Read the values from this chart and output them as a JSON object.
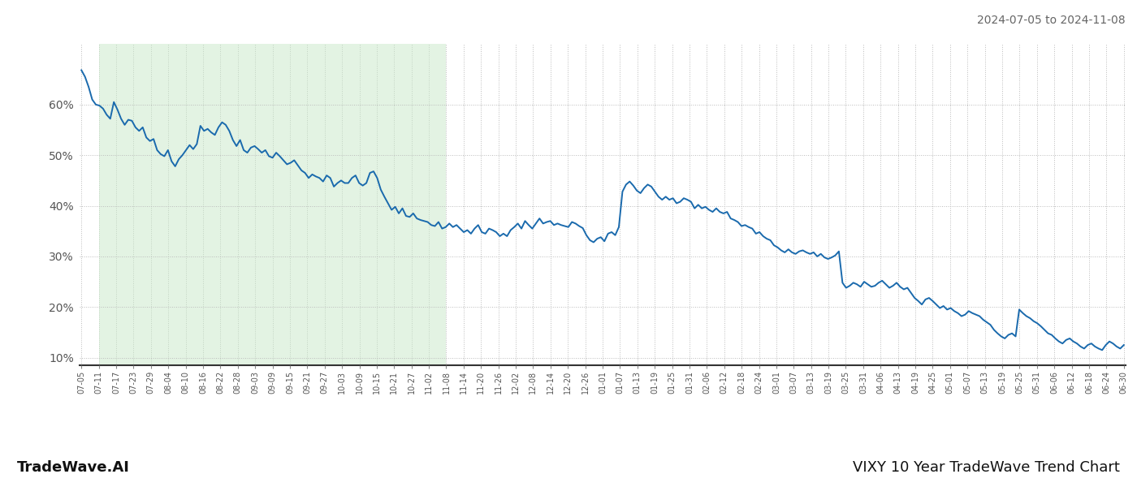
{
  "title_right": "2024-07-05 to 2024-11-08",
  "footer_left": "TradeWave.AI",
  "footer_right": "VIXY 10 Year TradeWave Trend Chart",
  "line_color": "#1a6aad",
  "line_width": 1.4,
  "shade_color": "#c8e8c8",
  "shade_alpha": 0.5,
  "bg_color": "#ffffff",
  "grid_color": "#bbbbbb",
  "ylim": [
    0.085,
    0.72
  ],
  "yticks": [
    0.1,
    0.2,
    0.3,
    0.4,
    0.5,
    0.6
  ],
  "ytick_labels": [
    "10%",
    "20%",
    "30%",
    "40%",
    "50%",
    "60%"
  ],
  "x_labels": [
    "07-05",
    "07-11",
    "07-17",
    "07-23",
    "07-29",
    "08-04",
    "08-10",
    "08-16",
    "08-22",
    "08-28",
    "09-03",
    "09-09",
    "09-15",
    "09-21",
    "09-27",
    "10-03",
    "10-09",
    "10-15",
    "10-21",
    "10-27",
    "11-02",
    "11-08",
    "11-14",
    "11-20",
    "11-26",
    "12-02",
    "12-08",
    "12-14",
    "12-20",
    "12-26",
    "01-01",
    "01-07",
    "01-13",
    "01-19",
    "01-25",
    "01-31",
    "02-06",
    "02-12",
    "02-18",
    "02-24",
    "03-01",
    "03-07",
    "03-13",
    "03-19",
    "03-25",
    "03-31",
    "04-06",
    "04-13",
    "04-19",
    "04-25",
    "05-01",
    "05-07",
    "05-13",
    "05-19",
    "05-25",
    "05-31",
    "06-06",
    "06-12",
    "06-18",
    "06-24",
    "06-30"
  ],
  "shade_start_label": "07-11",
  "shade_end_label": "11-08",
  "values": [
    0.668,
    0.655,
    0.635,
    0.61,
    0.6,
    0.598,
    0.592,
    0.58,
    0.572,
    0.605,
    0.59,
    0.572,
    0.56,
    0.57,
    0.568,
    0.555,
    0.548,
    0.555,
    0.535,
    0.528,
    0.532,
    0.51,
    0.502,
    0.498,
    0.51,
    0.488,
    0.478,
    0.492,
    0.5,
    0.51,
    0.52,
    0.512,
    0.522,
    0.558,
    0.548,
    0.552,
    0.545,
    0.54,
    0.555,
    0.565,
    0.56,
    0.548,
    0.53,
    0.518,
    0.53,
    0.51,
    0.505,
    0.515,
    0.518,
    0.512,
    0.505,
    0.51,
    0.498,
    0.495,
    0.505,
    0.498,
    0.49,
    0.482,
    0.485,
    0.49,
    0.48,
    0.47,
    0.465,
    0.455,
    0.462,
    0.458,
    0.455,
    0.448,
    0.46,
    0.455,
    0.438,
    0.445,
    0.45,
    0.445,
    0.445,
    0.455,
    0.46,
    0.445,
    0.44,
    0.445,
    0.465,
    0.468,
    0.455,
    0.432,
    0.418,
    0.405,
    0.392,
    0.398,
    0.385,
    0.395,
    0.38,
    0.378,
    0.385,
    0.375,
    0.372,
    0.37,
    0.368,
    0.362,
    0.36,
    0.368,
    0.355,
    0.358,
    0.365,
    0.358,
    0.362,
    0.355,
    0.348,
    0.352,
    0.345,
    0.355,
    0.362,
    0.348,
    0.345,
    0.355,
    0.352,
    0.348,
    0.34,
    0.345,
    0.34,
    0.352,
    0.358,
    0.365,
    0.355,
    0.37,
    0.362,
    0.355,
    0.365,
    0.375,
    0.365,
    0.368,
    0.37,
    0.362,
    0.365,
    0.362,
    0.36,
    0.358,
    0.368,
    0.365,
    0.36,
    0.356,
    0.342,
    0.332,
    0.328,
    0.335,
    0.338,
    0.33,
    0.345,
    0.348,
    0.342,
    0.358,
    0.428,
    0.442,
    0.448,
    0.44,
    0.43,
    0.425,
    0.435,
    0.442,
    0.438,
    0.428,
    0.418,
    0.412,
    0.418,
    0.412,
    0.415,
    0.405,
    0.408,
    0.415,
    0.412,
    0.408,
    0.395,
    0.402,
    0.395,
    0.398,
    0.392,
    0.388,
    0.395,
    0.388,
    0.385,
    0.388,
    0.375,
    0.372,
    0.368,
    0.36,
    0.362,
    0.358,
    0.355,
    0.345,
    0.348,
    0.34,
    0.335,
    0.332,
    0.322,
    0.318,
    0.312,
    0.308,
    0.314,
    0.308,
    0.305,
    0.31,
    0.312,
    0.308,
    0.305,
    0.308,
    0.3,
    0.305,
    0.298,
    0.295,
    0.298,
    0.302,
    0.31,
    0.248,
    0.238,
    0.242,
    0.248,
    0.245,
    0.24,
    0.25,
    0.245,
    0.24,
    0.242,
    0.248,
    0.252,
    0.245,
    0.238,
    0.242,
    0.248,
    0.24,
    0.235,
    0.238,
    0.228,
    0.218,
    0.212,
    0.205,
    0.215,
    0.218,
    0.212,
    0.205,
    0.198,
    0.202,
    0.195,
    0.198,
    0.192,
    0.188,
    0.182,
    0.185,
    0.192,
    0.188,
    0.185,
    0.182,
    0.175,
    0.17,
    0.165,
    0.155,
    0.148,
    0.142,
    0.138,
    0.145,
    0.148,
    0.142,
    0.195,
    0.188,
    0.182,
    0.178,
    0.172,
    0.168,
    0.162,
    0.155,
    0.148,
    0.145,
    0.138,
    0.132,
    0.128,
    0.135,
    0.138,
    0.132,
    0.128,
    0.122,
    0.118,
    0.125,
    0.128,
    0.122,
    0.118,
    0.115,
    0.125,
    0.132,
    0.128,
    0.122,
    0.118,
    0.125
  ]
}
